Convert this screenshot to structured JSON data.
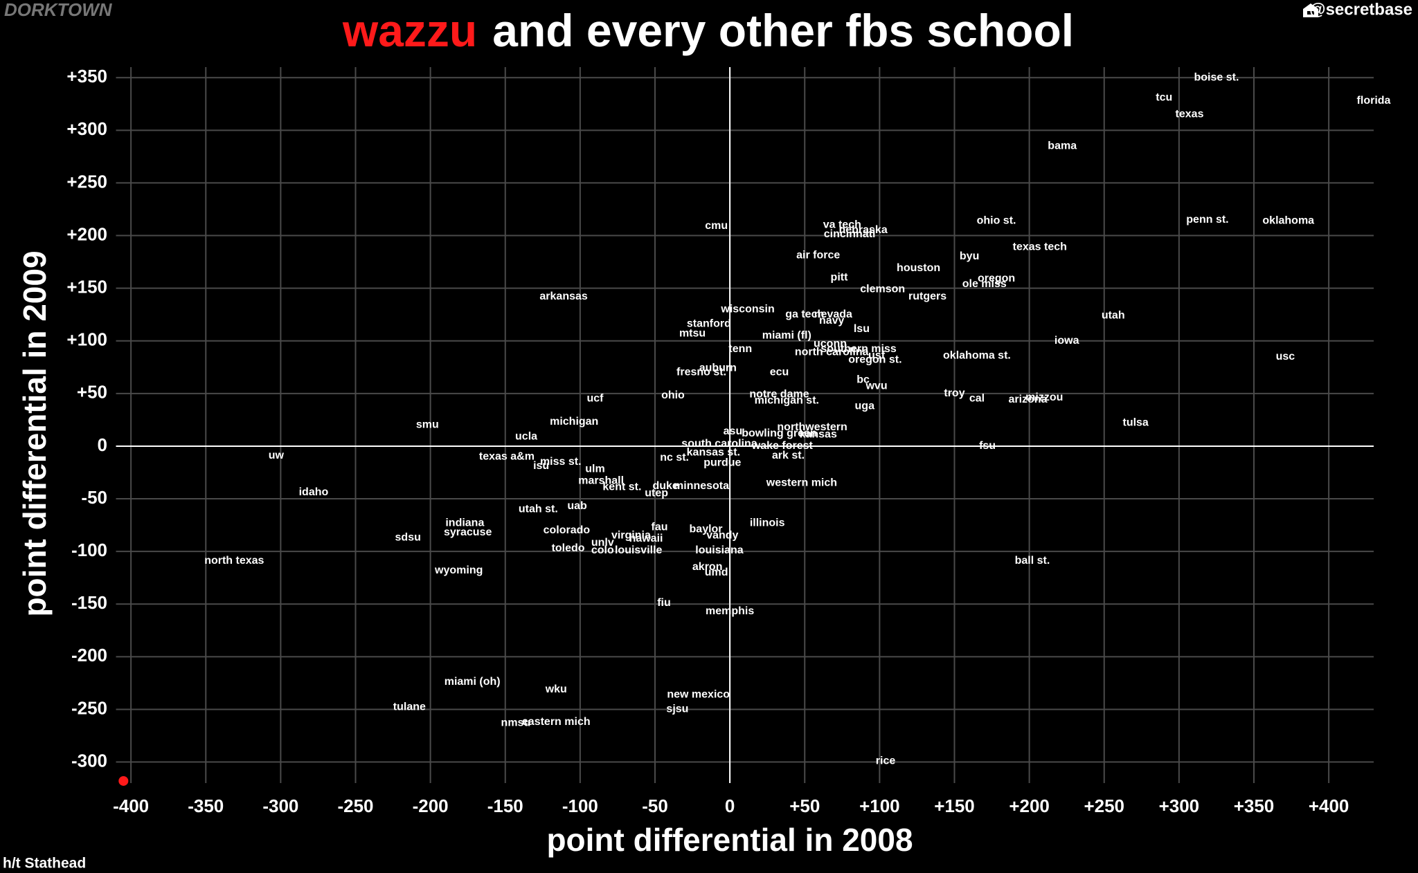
{
  "chart_data": {
    "type": "scatter",
    "title_highlight": "wazzu",
    "title": "and every other fbs school",
    "brand": "DORKTOWN",
    "credit": "@secretbase",
    "note": "h/t Stathead",
    "xlabel": "point differential in 2008",
    "ylabel": "point differential in 2009",
    "xlim": [
      -410,
      430
    ],
    "ylim": [
      -320,
      360
    ],
    "xticks": [
      -400,
      -350,
      -300,
      -250,
      -200,
      -150,
      -100,
      -50,
      0,
      {
        "value": 50,
        "label": "+50"
      },
      {
        "value": 100,
        "label": "+100"
      },
      {
        "value": 150,
        "label": "+150"
      },
      {
        "value": 200,
        "label": "+200"
      },
      {
        "value": 250,
        "label": "+250"
      },
      {
        "value": 300,
        "label": "+300"
      },
      {
        "value": 350,
        "label": "+350"
      },
      {
        "value": 400,
        "label": "+400"
      }
    ],
    "yticks": [
      -300,
      -250,
      -200,
      -150,
      -100,
      -50,
      0,
      {
        "value": 50,
        "label": "+50"
      },
      {
        "value": 100,
        "label": "+100"
      },
      {
        "value": 150,
        "label": "+150"
      },
      {
        "value": 200,
        "label": "+200"
      },
      {
        "value": 250,
        "label": "+250"
      },
      {
        "value": 300,
        "label": "+300"
      },
      {
        "value": 350,
        "label": "+350"
      }
    ],
    "grid": true,
    "color": "#ffffff",
    "labels": [
      "boise st.",
      "tcu",
      "florida",
      "texas",
      "bama",
      "cmu",
      "va tech",
      "cincinnati",
      "nebraska",
      "ohio st.",
      "penn st.",
      "oklahoma",
      "texas tech",
      "air force",
      "byu",
      "houston",
      "pitt",
      "oregon",
      "ole miss",
      "clemson",
      "rutgers",
      "arkansas",
      "wisconsin",
      "ga tech",
      "nevada",
      "navy",
      "utah",
      "stanford",
      "lsu",
      "mtsu",
      "miami (fl)",
      "iowa",
      "uconn",
      "tenn",
      "north carolina",
      "southern miss",
      "usf",
      "oregon st.",
      "oklahoma st.",
      "usc",
      "auburn",
      "fresno st.",
      "ecu",
      "bc",
      "wvu",
      "ucf",
      "ohio",
      "notre dame",
      "troy",
      "cal",
      "arizona",
      "mizzou",
      "michigan st.",
      "uga",
      "tulsa",
      "smu",
      "michigan",
      "asu",
      "northwestern",
      "bowling green",
      "kansas",
      "ucla",
      "south carolina",
      "wake forest",
      "fsu",
      "kansas st.",
      "uw",
      "texas a&m",
      "ark st.",
      "nc st.",
      "miss st.",
      "isu",
      "purdue",
      "ulm",
      "marshall",
      "western mich",
      "kent st.",
      "duke",
      "minnesota",
      "utep",
      "idaho",
      "uab",
      "utah st.",
      "illinois",
      "indiana",
      "fau",
      "colorado",
      "baylor",
      "syracuse",
      "virginia",
      "vandy",
      "hawaii",
      "sdsu",
      "unlv",
      "toledo",
      "colo",
      "louisville",
      "louisiana",
      "north texas",
      "ball st.",
      "akron",
      "wyoming",
      "umd",
      "fiu",
      "memphis",
      "miami (oh)",
      "wku",
      "new mexico",
      "tulane",
      "sjsu",
      "nmsu",
      "eastern mich",
      "rice"
    ],
    "x": [
      325,
      290,
      430,
      307,
      222,
      -9,
      75,
      80,
      89,
      178,
      319,
      373,
      207,
      59,
      160,
      126,
      73,
      178,
      170,
      102,
      132,
      -111,
      12,
      50,
      69,
      68,
      256,
      -14,
      88,
      -25,
      38,
      225,
      67,
      7,
      68,
      86,
      98,
      97,
      165,
      371,
      -8,
      -19,
      33,
      89,
      98,
      -90,
      -38,
      33,
      150,
      165,
      199,
      210,
      38,
      90,
      271,
      -202,
      -104,
      2,
      55,
      33,
      59,
      -136,
      -7,
      35,
      172,
      -11,
      -303,
      -149,
      39,
      -37,
      -113,
      -126,
      -5,
      -90,
      -86,
      48,
      -72,
      -43,
      -19,
      -49,
      -278,
      -102,
      -128,
      25,
      -177,
      -47,
      -109,
      -16,
      -175,
      -66,
      -5,
      -56,
      -215,
      -85,
      -108,
      -85,
      -61,
      -7,
      -331,
      202,
      -15,
      -181,
      -9,
      -44,
      0,
      -172,
      -116,
      -21,
      -214,
      -35,
      -143,
      -116,
      104
    ],
    "values": [
      350,
      331,
      328,
      315,
      285,
      209,
      210,
      201,
      205,
      214,
      215,
      214,
      189,
      181,
      180,
      169,
      160,
      159,
      154,
      149,
      142,
      142,
      130,
      125,
      125,
      119,
      124,
      116,
      111,
      107,
      105,
      100,
      97,
      92,
      89,
      92,
      86,
      82,
      86,
      85,
      74,
      70,
      70,
      63,
      57,
      45,
      48,
      49,
      50,
      45,
      44,
      46,
      43,
      38,
      22,
      20,
      23,
      14,
      18,
      12,
      11,
      9,
      2,
      0,
      0,
      -6,
      -9,
      -10,
      -9,
      -11,
      -15,
      -19,
      -16,
      -22,
      -33,
      -35,
      -39,
      -38,
      -38,
      -45,
      -44,
      -57,
      -60,
      -73,
      -73,
      -77,
      -80,
      -79,
      -82,
      -85,
      -85,
      -88,
      -87,
      -92,
      -97,
      -99,
      -99,
      -99,
      -109,
      -109,
      -115,
      -118,
      -120,
      -149,
      -157,
      -224,
      -231,
      -236,
      -248,
      -250,
      -263,
      -262,
      -299
    ],
    "highlight": {
      "x": -405,
      "y": -318,
      "color": "#ff1a1a"
    }
  }
}
